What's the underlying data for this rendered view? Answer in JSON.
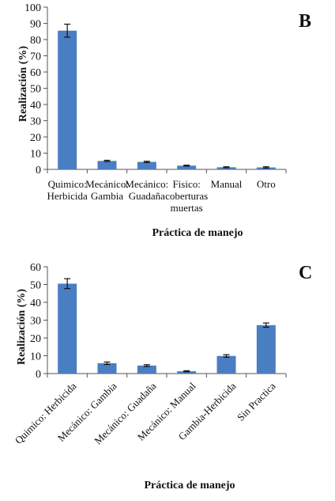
{
  "chart_data": [
    {
      "type": "bar",
      "panel_label": "B",
      "categories": [
        "Quimico:\nHerbicida",
        "Mecánico:\nGambia",
        "Mecánico:\nGuadaña",
        "Fisico:\ncoberturas\nmuertas",
        "Manual",
        "Otro"
      ],
      "values": [
        85.5,
        5.2,
        4.6,
        2.3,
        1.3,
        1.2
      ],
      "errors": [
        4.0,
        0.4,
        0.4,
        0.3,
        0.3,
        0.4
      ],
      "xlabel": "Práctica de manejo",
      "ylabel": "Realización (%)",
      "ylim": [
        0,
        100
      ],
      "yticks": [
        0,
        10,
        20,
        30,
        40,
        50,
        60,
        70,
        80,
        90,
        100
      ],
      "bar_color": "#4a7ec2"
    },
    {
      "type": "bar",
      "panel_label": "C",
      "categories": [
        "Quimico: Herbicida",
        "Mecánico: Gambia",
        "Mecánico: Guadaña",
        "Mecánico: Manual",
        "Gambia-Herbicida",
        "Sin Practica"
      ],
      "values": [
        50.5,
        5.8,
        4.5,
        1.3,
        9.9,
        27.2
      ],
      "errors": [
        2.8,
        0.7,
        0.5,
        0.3,
        0.7,
        1.2
      ],
      "xlabel": "Práctica  de manejo",
      "ylabel": "Realización (%)",
      "ylim": [
        0,
        60
      ],
      "yticks": [
        0,
        10,
        20,
        30,
        40,
        50,
        60
      ],
      "bar_color": "#4a7ec2"
    }
  ]
}
